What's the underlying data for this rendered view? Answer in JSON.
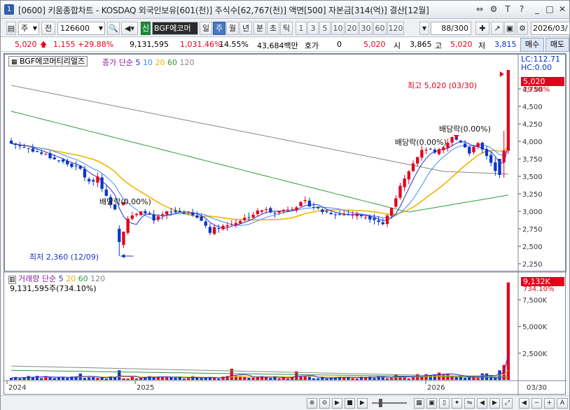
{
  "window": {
    "number": "1",
    "title": "[0600] 키움종합차트 - KOSDAQ 외국인보유[601(천)] 주식수[62,767(천)] 액면[500] 자본금[314(억)] 결산[12월]"
  },
  "toolbar": {
    "period_select": "주",
    "prev_label": "전",
    "code": "126600",
    "credit_badge": "신",
    "stock_name": "BGF에코머티",
    "tf_day": "일",
    "tf_week": "주",
    "tf_month": "월",
    "tf_year": "년",
    "tf_min": "분",
    "tf_sec": "초",
    "tf_tick": "틱",
    "nums": [
      "1",
      "3",
      "5",
      "10",
      "20",
      "30",
      "60",
      "120"
    ],
    "count": "88/300",
    "date": "2026/03/",
    "selected_tf": "주"
  },
  "quote": {
    "price": "5,020",
    "change": "1,155",
    "change_pct": "+29.88%",
    "volume": "9,131,595",
    "volume_pct": "1,031.46%",
    "turnover": "14.55%",
    "amount": "43,684백만",
    "hoga_label": "호가",
    "hoga_value": "0",
    "hoga_price": "5,020",
    "open_label": "시",
    "open": "3,865",
    "high_label": "고",
    "high": "5,020",
    "low_label": "저",
    "low": "3,815",
    "buy_label": "매수",
    "sell_label": "매도"
  },
  "price_panel": {
    "name_box": "BGF에코머티리얼즈",
    "ma_label": "종가 단순",
    "ma_periods": [
      "5",
      "10",
      "20",
      "60",
      "120"
    ],
    "lc": "LC:112.71",
    "hc": "HC:0.00",
    "current_tag": "5,020",
    "current_pct": "29.88%",
    "annot_high": "최고 5,020 (03/30)",
    "annot_low": "최저 2,360 (12/09)",
    "annot_div1": "배당락(0.00%)",
    "annot_div2": "배당락(0.00%)",
    "annot_div3": "배당락(0.00%)"
  },
  "volume_panel": {
    "title": "거래량",
    "ma_label": "단순",
    "ma_periods": [
      "5",
      "20",
      "60",
      "120"
    ],
    "value_text": "9,131,595주(734.10%)",
    "current_tag": "9,132K",
    "current_pct": "734.10%"
  },
  "axes": {
    "price_ticks": [
      "4,750",
      "4,500",
      "4,250",
      "4,000",
      "3,750",
      "3,500",
      "3,250",
      "3,000",
      "2,750",
      "2,500",
      "2,250"
    ],
    "volume_ticks": [
      "7,500K",
      "5,000K",
      "2,500K"
    ],
    "x_labels": [
      "2024",
      "2025",
      "2026"
    ],
    "x_right": "03/30"
  },
  "colors": {
    "up": "#e4001b",
    "down": "#0a37c9",
    "ma5": "#2b2bd6",
    "ma20": "#f0b400",
    "ma60": "#2e9a3e",
    "ma120": "#888888"
  },
  "chart_data": {
    "type": "candlestick",
    "x_label_years": [
      "2024",
      "2025",
      "2026"
    ],
    "price_range": [
      2250,
      5020
    ],
    "high_value": 5020,
    "low_value": 2360,
    "last_close": 5020,
    "volume_last": 9131595
  }
}
